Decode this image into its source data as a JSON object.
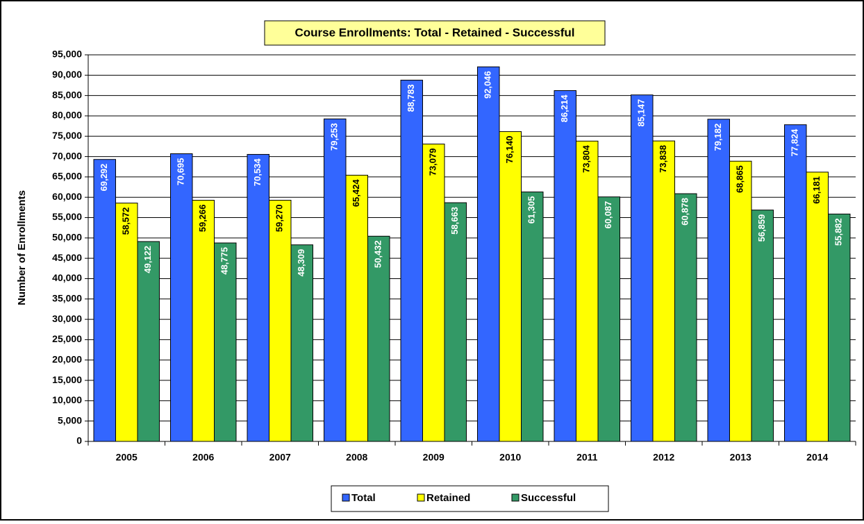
{
  "chart_data": {
    "type": "bar",
    "title": "Course Enrollments: Total - Retained - Successful",
    "y_label": "Number of Enrollments",
    "categories": [
      "2005",
      "2006",
      "2007",
      "2008",
      "2009",
      "2010",
      "2011",
      "2012",
      "2013",
      "2014"
    ],
    "series": [
      {
        "name": "Total",
        "color": "#3366ff",
        "values": [
          69292,
          70695,
          70534,
          79253,
          88783,
          92046,
          86214,
          85147,
          79182,
          77824
        ],
        "value_labels": [
          "69,292",
          "70,695",
          "70,534",
          "79,253",
          "88,783",
          "92,046",
          "86,214",
          "85,147",
          "79,182",
          "77,824"
        ]
      },
      {
        "name": "Retained",
        "color": "#ffff00",
        "values": [
          58572,
          59266,
          59270,
          65424,
          73079,
          76140,
          73804,
          73838,
          68865,
          66181
        ],
        "value_labels": [
          "58,572",
          "59,266",
          "59,270",
          "65,424",
          "73,079",
          "76,140",
          "73,804",
          "73,838",
          "68,865",
          "66,181"
        ]
      },
      {
        "name": "Successful",
        "color": "#339966",
        "values": [
          49122,
          48775,
          48309,
          50432,
          58663,
          61305,
          60087,
          60878,
          56859,
          55882
        ],
        "value_labels": [
          "49,122",
          "48,775",
          "48,309",
          "50,432",
          "58,663",
          "61,305",
          "60,087",
          "60,878",
          "56,859",
          "55,882"
        ]
      }
    ],
    "ylim": [
      0,
      95000
    ],
    "yticks": [
      0,
      {
        "value": 5000,
        "label": "5,000"
      },
      {
        "value": 10000,
        "label": "10,000"
      },
      {
        "value": 15000,
        "label": "15,000"
      },
      {
        "value": 20000,
        "label": "20,000"
      },
      {
        "value": 25000,
        "label": "25,000"
      },
      {
        "value": 30000,
        "label": "30,000"
      },
      {
        "value": 35000,
        "label": "35,000"
      },
      {
        "value": 40000,
        "label": "40,000"
      },
      {
        "value": 45000,
        "label": "45,000"
      },
      {
        "value": 50000,
        "label": "50,000"
      },
      {
        "value": 55000,
        "label": "55,000"
      },
      {
        "value": 60000,
        "label": "60,000"
      },
      {
        "value": 65000,
        "label": "65,000"
      },
      {
        "value": 70000,
        "label": "70,000"
      },
      {
        "value": 75000,
        "label": "75,000"
      },
      {
        "value": 80000,
        "label": "80,000"
      },
      {
        "value": 85000,
        "label": "85,000"
      },
      {
        "value": 90000,
        "label": "90,000"
      },
      {
        "value": 95000,
        "label": "95,000"
      }
    ],
    "grid": true,
    "legend": "bottom"
  }
}
